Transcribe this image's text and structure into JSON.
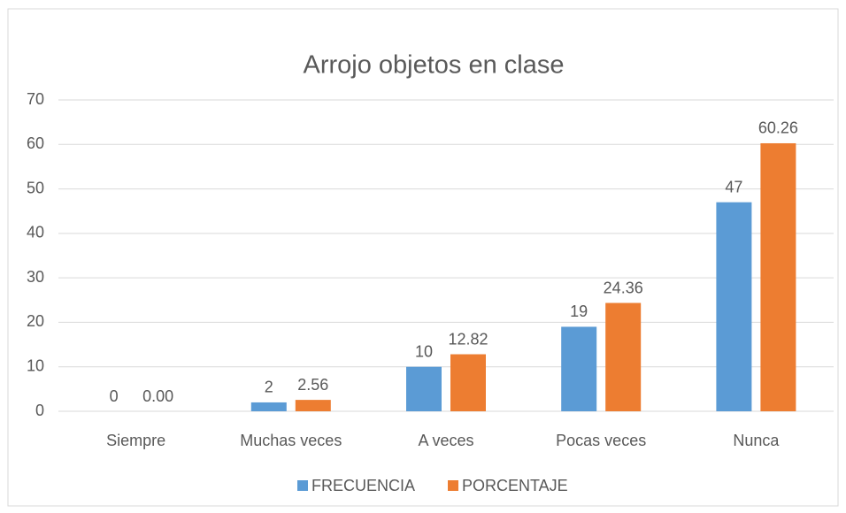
{
  "chart_data": {
    "type": "bar",
    "title": "Arrojo objetos en clase",
    "categories": [
      "Siempre",
      "Muchas veces",
      "A veces",
      "Pocas veces",
      "Nunca"
    ],
    "series": [
      {
        "name": "FRECUENCIA",
        "color": "#5b9bd5",
        "values": [
          0,
          2,
          10,
          19,
          47
        ]
      },
      {
        "name": "PORCENTAJE",
        "color": "#ed7d31",
        "values": [
          0,
          2.56,
          12.82,
          24.36,
          60.26
        ],
        "value_labels": [
          "0.00",
          "2.56",
          "12.82",
          "24.36",
          "60.26"
        ]
      }
    ],
    "ylim": [
      0,
      70
    ],
    "yticks": [
      0,
      10,
      20,
      30,
      40,
      50,
      60,
      70
    ],
    "grid": true,
    "legend": "bottom"
  }
}
